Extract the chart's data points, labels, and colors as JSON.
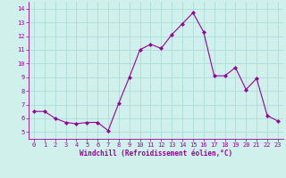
{
  "x": [
    0,
    1,
    2,
    3,
    4,
    5,
    6,
    7,
    8,
    9,
    10,
    11,
    12,
    13,
    14,
    15,
    16,
    17,
    18,
    19,
    20,
    21,
    22,
    23
  ],
  "y": [
    6.5,
    6.5,
    6.0,
    5.7,
    5.6,
    5.7,
    5.7,
    5.1,
    7.1,
    9.0,
    11.0,
    11.4,
    11.1,
    12.1,
    12.9,
    13.7,
    12.3,
    9.1,
    9.1,
    9.7,
    8.1,
    8.9,
    6.2,
    5.8
  ],
  "line_color": "#990099",
  "marker": "D",
  "marker_size": 2.0,
  "bg_color": "#cff0eb",
  "grid_color": "#aaddd8",
  "xlabel": "Windchill (Refroidissement éolien,°C)",
  "ylim": [
    4.5,
    14.5
  ],
  "yticks": [
    5,
    6,
    7,
    8,
    9,
    10,
    11,
    12,
    13,
    14
  ],
  "xticks": [
    0,
    1,
    2,
    3,
    4,
    5,
    6,
    7,
    8,
    9,
    10,
    11,
    12,
    13,
    14,
    15,
    16,
    17,
    18,
    19,
    20,
    21,
    22,
    23
  ],
  "tick_color": "#990099",
  "label_color": "#990099",
  "border_color": "#990099",
  "fig_w": 3.2,
  "fig_h": 2.0,
  "dpi": 100
}
